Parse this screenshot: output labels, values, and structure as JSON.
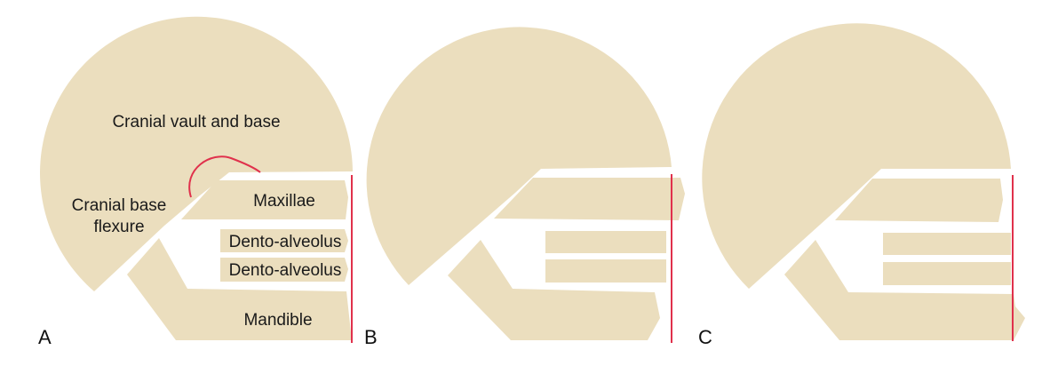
{
  "figure": {
    "panels": [
      {
        "letter": "A",
        "labels": {
          "cranial_vault": "Cranial vault and base",
          "flexure_line1": "Cranial base",
          "flexure_line2": "flexure",
          "maxillae": "Maxillae",
          "dento_upper": "Dento-alveolus",
          "dento_lower": "Dento-alveolus",
          "mandible": "Mandible"
        }
      },
      {
        "letter": "B"
      },
      {
        "letter": "C"
      }
    ],
    "colors": {
      "bone": "#ebdebe",
      "reference_line": "#e0314c",
      "background": "#ffffff"
    }
  }
}
